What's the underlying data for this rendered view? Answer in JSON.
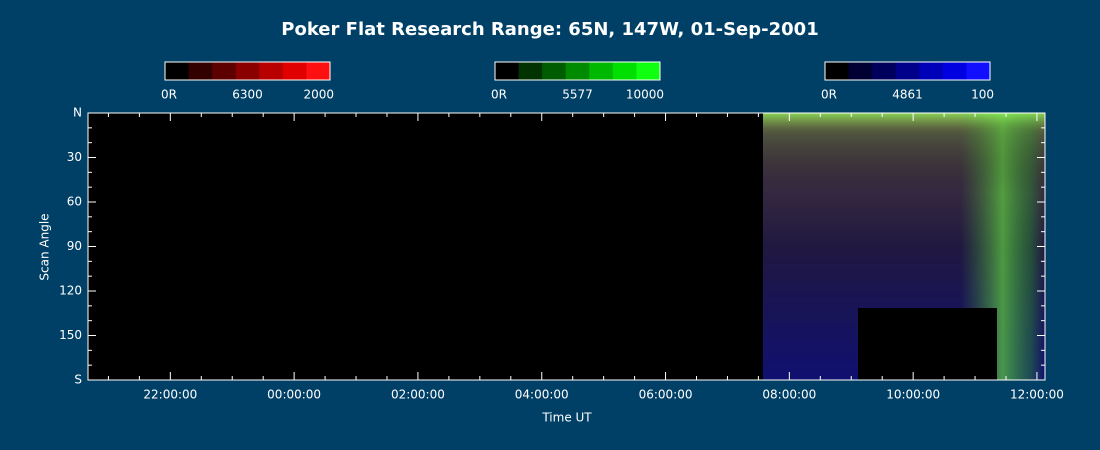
{
  "chart_data": {
    "type": "keogram",
    "title": "Poker Flat Research Range: 65N, 147W, 01-Sep-2001",
    "x_label": "Time UT",
    "y_label": "Scan Angle",
    "xlim": [
      20.67,
      36.13
    ],
    "xticks": [
      {
        "value": 22,
        "label": "22:00:00"
      },
      {
        "value": 24,
        "label": "00:00:00"
      },
      {
        "value": 26,
        "label": "02:00:00"
      },
      {
        "value": 28,
        "label": "04:00:00"
      },
      {
        "value": 30,
        "label": "06:00:00"
      },
      {
        "value": 32,
        "label": "08:00:00"
      },
      {
        "value": 34,
        "label": "10:00:00"
      },
      {
        "value": 36,
        "label": "12:00:00"
      }
    ],
    "ylim": [
      0,
      180
    ],
    "yticks": [
      {
        "value": 0,
        "label": "N"
      },
      30,
      60,
      90,
      120,
      150,
      {
        "value": 180,
        "label": "S"
      }
    ],
    "colorbars": [
      {
        "min_label": "0R",
        "label": "6300",
        "max": 2000,
        "colors": [
          "#000000",
          "#330000",
          "#5c0000",
          "#8a0000",
          "#b80000",
          "#e00000",
          "#ff1010"
        ]
      },
      {
        "min_label": "0R",
        "label": "5577",
        "max": 10000,
        "colors": [
          "#000000",
          "#003300",
          "#005c00",
          "#008a00",
          "#00b800",
          "#00e000",
          "#10ff10"
        ]
      },
      {
        "min_label": "0R",
        "label": "4861",
        "max": 100,
        "colors": [
          "#000000",
          "#000033",
          "#00005c",
          "#00008a",
          "#0000b8",
          "#0000e0",
          "#1010ff"
        ]
      }
    ]
  }
}
